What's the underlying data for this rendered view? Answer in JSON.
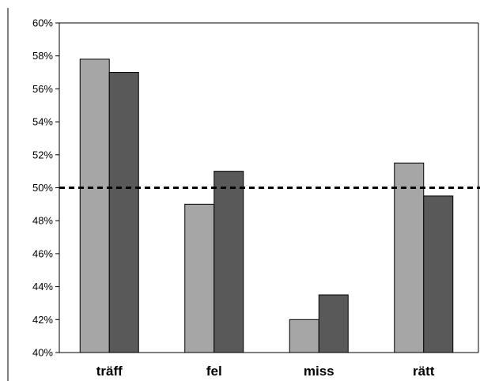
{
  "chart_data": {
    "type": "bar",
    "title": "",
    "xlabel": "",
    "ylabel": "",
    "ylim": [
      0.4,
      0.6
    ],
    "y_tick_step": 0.02,
    "y_ticks": [
      "40%",
      "42%",
      "44%",
      "46%",
      "48%",
      "50%",
      "52%",
      "54%",
      "56%",
      "58%",
      "60%"
    ],
    "categories": [
      "träff",
      "fel",
      "miss",
      "rätt"
    ],
    "series": [
      {
        "color": "#a6a6a6",
        "values": [
          0.578,
          0.49,
          0.42,
          0.515
        ]
      },
      {
        "color": "#595959",
        "values": [
          0.57,
          0.51,
          0.435,
          0.495
        ]
      }
    ],
    "reference_line": {
      "value": 0.5,
      "style": "dashed",
      "color": "#000000"
    },
    "grid": false,
    "legend": "none"
  }
}
